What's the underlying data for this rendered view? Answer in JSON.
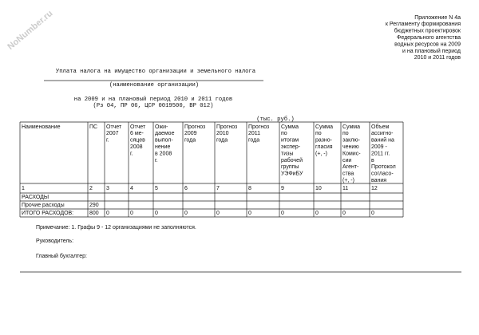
{
  "watermark": "NoNumber.ru",
  "appendix": [
    "Приложение N 4а",
    "к Регламенту формирования",
    "бюджетных проектировок",
    "Федерального агентства",
    "водных ресурсов на 2009",
    "и на плановый период",
    "2010 и 2011 годов"
  ],
  "title": "Уплата налога на имущество организации и земельного налога",
  "org_caption": "(наименование организации)",
  "period": "на 2009 и на плановый период 2010 и 2011 годов",
  "codes": "(Рз 04, ПР 06, ЦСР 0019500, ВР 012)",
  "units": "(тыс. руб.)",
  "table": {
    "headers": [
      [
        "Наименование"
      ],
      [
        "ПС"
      ],
      [
        "Отчет",
        "2007",
        "г."
      ],
      [
        "Отчет",
        "6 ме-",
        "сяцев",
        "2008",
        "г."
      ],
      [
        "Ожи-",
        "даемое",
        "выпол-",
        "нение",
        "в 2008",
        "г."
      ],
      [
        "Прогноз",
        "2009",
        "года"
      ],
      [
        "Прогноз",
        "2010",
        "года"
      ],
      [
        "Прогноз",
        "2011",
        "года"
      ],
      [
        "Сумма",
        "по",
        "итогам",
        "экспер-",
        "тизы",
        "рабочей",
        "группы",
        "УЭФиБУ"
      ],
      [
        "Сумма",
        "по",
        "разно-",
        "гласия",
        "(+, -)"
      ],
      [
        "Сумма",
        "по",
        "заклю-",
        "чению",
        "Комис-",
        "сии",
        "Агент-",
        "ства",
        "(+, -)"
      ],
      [
        "Объем",
        "ассигно-",
        "ваний на",
        "2009 -",
        "2011 гг.",
        "в",
        "Протокол",
        "согласо-",
        "вания"
      ]
    ],
    "numbers": [
      "1",
      "2",
      "3",
      "4",
      "5",
      "6",
      "7",
      "8",
      "9",
      "10",
      "11",
      "12"
    ],
    "rows": [
      {
        "label": "РАСХОДЫ"
      },
      {
        "label": "Прочие расходы",
        "code": 290
      },
      {
        "label": "ИТОГО РАСХОДОВ:",
        "code": 800,
        "values": [
          0,
          0,
          0,
          0,
          0,
          0,
          0,
          0,
          0,
          0
        ]
      }
    ]
  },
  "note": "Примечание: 1. Графы 9 - 12 организациями не заполняются.",
  "signatures": [
    "Руководитель:",
    "Главный бухгалтер:"
  ]
}
